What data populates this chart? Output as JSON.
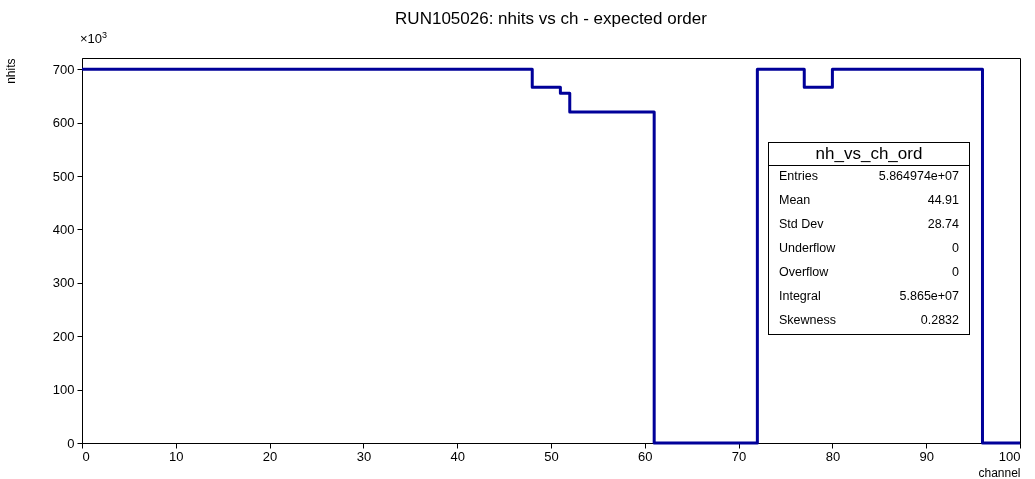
{
  "chart_data": {
    "type": "histogram",
    "title": "RUN105026: nhits vs ch - expected order",
    "xlabel": "channel",
    "ylabel": "nhits",
    "bins": [
      0,
      48,
      51,
      52,
      61,
      72,
      77,
      80,
      96,
      100
    ],
    "values": [
      700,
      666,
      655,
      620,
      0,
      700,
      666,
      700,
      0
    ],
    "color": "#000099",
    "xlim": [
      0,
      100
    ],
    "xticks": [
      0,
      10,
      20,
      30,
      40,
      50,
      60,
      70,
      80,
      90,
      100
    ],
    "ylim": [
      0,
      721
    ],
    "yticks": [
      0,
      100,
      200,
      300,
      400,
      500,
      600,
      700
    ],
    "grid": false,
    "annotations": [
      "×10$^{3}$",
      "nh_vs_ch_ord",
      "Entries",
      "5.864974e+07",
      "Mean",
      "44.91",
      "Std Dev",
      "28.74",
      "Underflow",
      "0",
      "Overflow",
      "0",
      "Integral",
      "5.865e+07",
      "Skewness",
      "0.2832"
    ]
  }
}
